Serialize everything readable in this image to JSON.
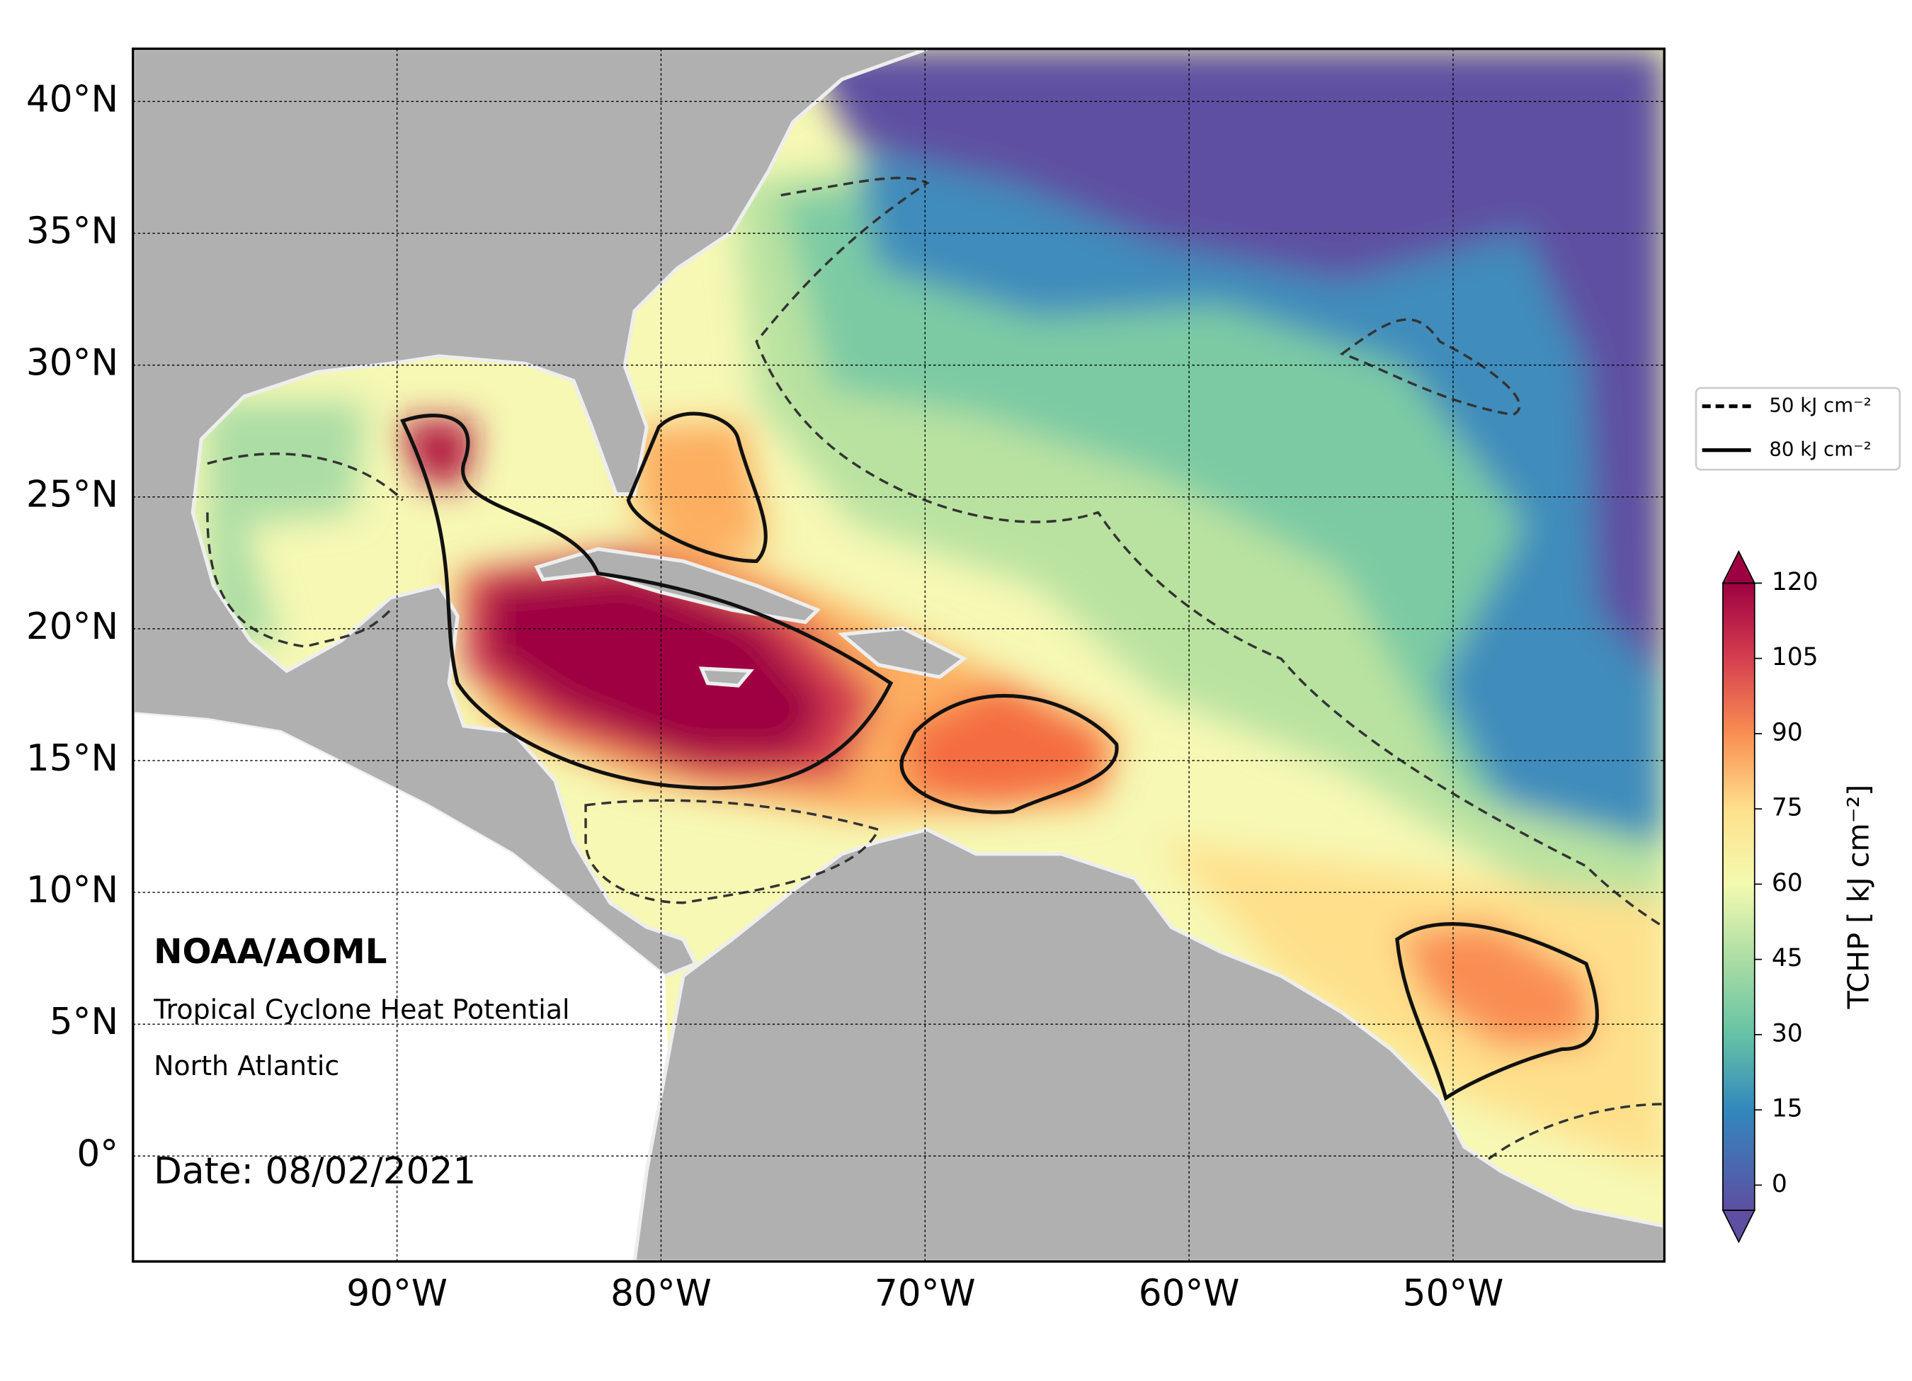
{
  "map": {
    "lon_range": [
      -100,
      -42
    ],
    "lat_range": [
      -4,
      42
    ],
    "lon_ticks": [
      {
        "value": -90,
        "label": "90°W"
      },
      {
        "value": -80,
        "label": "80°W"
      },
      {
        "value": -70,
        "label": "70°W"
      },
      {
        "value": -60,
        "label": "60°W"
      },
      {
        "value": -50,
        "label": "50°W"
      }
    ],
    "lat_ticks": [
      {
        "value": 0,
        "label": "0°"
      },
      {
        "value": 5,
        "label": "5°N"
      },
      {
        "value": 10,
        "label": "10°N"
      },
      {
        "value": 15,
        "label": "15°N"
      },
      {
        "value": 20,
        "label": "20°N"
      },
      {
        "value": 25,
        "label": "25°N"
      },
      {
        "value": 30,
        "label": "30°N"
      },
      {
        "value": 35,
        "label": "35°N"
      },
      {
        "value": 40,
        "label": "40°N"
      }
    ],
    "grid": true,
    "annotations": {
      "agency": "NOAA/AOML",
      "product": "Tropical Cyclone Heat Potential",
      "region": "North Atlantic",
      "date": "Date: 08/02/2021"
    },
    "legend": [
      {
        "label": "50 kJ cm⁻²",
        "style": "dashed"
      },
      {
        "label": "80 kJ cm⁻²",
        "style": "solid"
      }
    ],
    "colorbar": {
      "label": "TCHP [ kJ cm⁻²]",
      "range": [
        -5,
        120
      ],
      "ticks": [
        0,
        15,
        30,
        45,
        60,
        75,
        90,
        105,
        120
      ]
    }
  }
}
